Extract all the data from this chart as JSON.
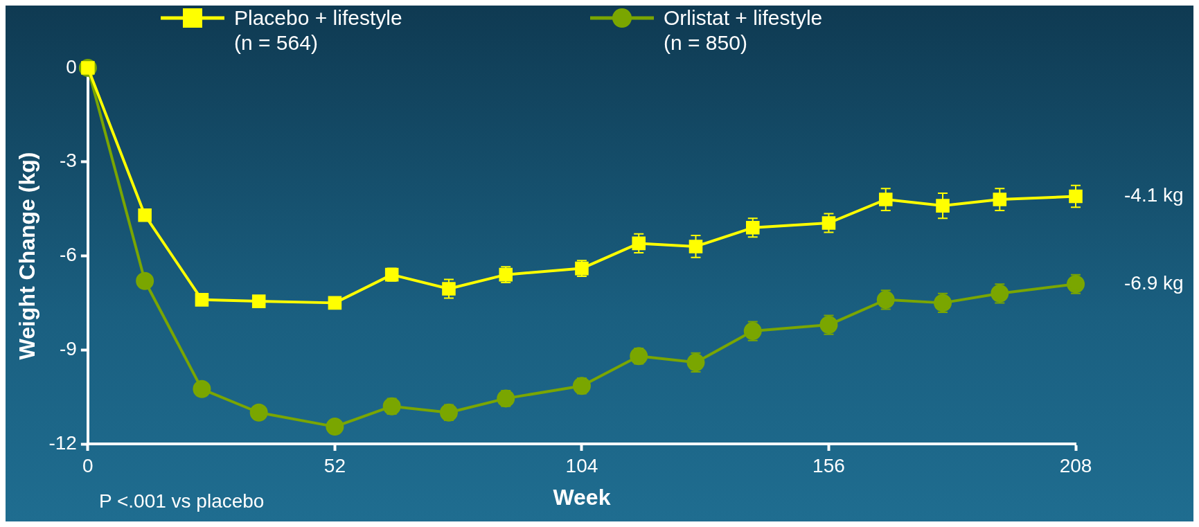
{
  "chart_data": {
    "type": "line",
    "xlabel": "Week",
    "ylabel": "Weight Change (kg)",
    "xlim": [
      0,
      208
    ],
    "xticks": [
      0,
      52,
      104,
      156,
      208
    ],
    "ylim": [
      -12,
      0
    ],
    "yticks": [
      0,
      -3,
      -6,
      -9,
      -12
    ],
    "grid": false,
    "legend": "top",
    "line_style": "solid",
    "series": [
      {
        "name": "Placebo + lifestyle (n = 564)",
        "color": "#ffff00",
        "marker": "square",
        "x": [
          0,
          12,
          24,
          36,
          52,
          64,
          76,
          88,
          104,
          116,
          128,
          140,
          156,
          168,
          180,
          192,
          208
        ],
        "values": [
          0,
          -4.7,
          -7.4,
          -7.45,
          -7.5,
          -6.6,
          -7.05,
          -6.6,
          -6.4,
          -5.6,
          -5.7,
          -5.1,
          -4.95,
          -4.2,
          -4.4,
          -4.2,
          -4.1
        ],
        "errors": [
          null,
          null,
          null,
          null,
          null,
          0.2,
          0.3,
          0.25,
          0.25,
          0.3,
          0.35,
          0.3,
          0.3,
          0.35,
          0.4,
          0.35,
          0.35
        ]
      },
      {
        "name": "Orlistat + lifestyle (n = 850)",
        "color": "#7aa600",
        "marker": "circle",
        "x": [
          0,
          12,
          24,
          36,
          52,
          64,
          76,
          88,
          104,
          116,
          128,
          140,
          156,
          168,
          180,
          192,
          208
        ],
        "values": [
          0,
          -6.8,
          -10.25,
          -11.0,
          -11.45,
          -10.8,
          -11.0,
          -10.55,
          -10.15,
          -9.2,
          -9.4,
          -8.4,
          -8.2,
          -7.4,
          -7.5,
          -7.2,
          -6.9
        ],
        "errors": [
          null,
          null,
          null,
          null,
          null,
          0.25,
          0.25,
          0.25,
          0.25,
          0.25,
          0.3,
          0.3,
          0.3,
          0.3,
          0.3,
          0.3,
          0.3
        ]
      }
    ],
    "annotations": [
      {
        "text": "-4.1 kg",
        "x": 208,
        "y": -4.1
      },
      {
        "text": "-6.9 kg",
        "x": 208,
        "y": -6.9
      },
      "P <.001 vs placebo"
    ]
  }
}
